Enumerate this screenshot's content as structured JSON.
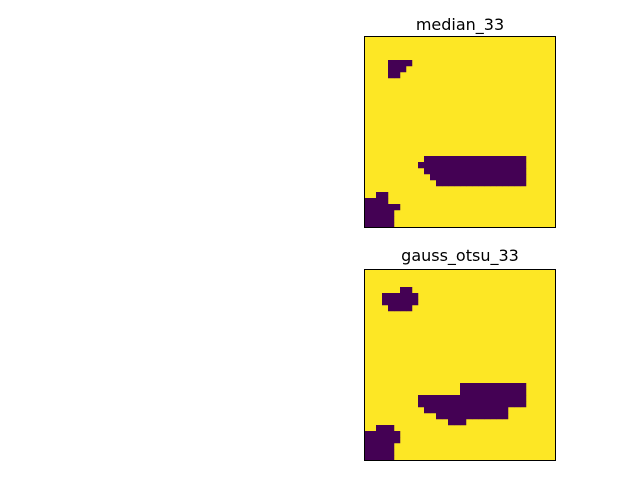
{
  "colors": {
    "background": "#fde725",
    "blob": "#440154",
    "frame": "#000000"
  },
  "panels": [
    {
      "title": "median_33",
      "grid_size": 32,
      "blobs": [
        [
          [
            4,
            4
          ],
          [
            5,
            4
          ],
          [
            6,
            4
          ],
          [
            7,
            4
          ],
          [
            4,
            5
          ],
          [
            5,
            5
          ],
          [
            6,
            5
          ],
          [
            4,
            6
          ],
          [
            5,
            6
          ]
        ],
        [
          [
            10,
            20
          ],
          [
            11,
            20
          ],
          [
            12,
            20
          ],
          [
            13,
            20
          ],
          [
            14,
            20
          ],
          [
            15,
            20
          ],
          [
            16,
            20
          ],
          [
            17,
            20
          ],
          [
            18,
            20
          ],
          [
            19,
            20
          ],
          [
            20,
            20
          ],
          [
            21,
            20
          ],
          [
            22,
            20
          ],
          [
            23,
            20
          ],
          [
            24,
            20
          ],
          [
            25,
            20
          ],
          [
            26,
            20
          ],
          [
            9,
            21
          ],
          [
            10,
            21
          ],
          [
            11,
            21
          ],
          [
            12,
            21
          ],
          [
            13,
            21
          ],
          [
            14,
            21
          ],
          [
            15,
            21
          ],
          [
            16,
            21
          ],
          [
            17,
            21
          ],
          [
            18,
            21
          ],
          [
            19,
            21
          ],
          [
            20,
            21
          ],
          [
            21,
            21
          ],
          [
            22,
            21
          ],
          [
            23,
            21
          ],
          [
            24,
            21
          ],
          [
            25,
            21
          ],
          [
            26,
            21
          ],
          [
            10,
            22
          ],
          [
            11,
            22
          ],
          [
            12,
            22
          ],
          [
            13,
            22
          ],
          [
            14,
            22
          ],
          [
            15,
            22
          ],
          [
            16,
            22
          ],
          [
            17,
            22
          ],
          [
            18,
            22
          ],
          [
            19,
            22
          ],
          [
            20,
            22
          ],
          [
            21,
            22
          ],
          [
            22,
            22
          ],
          [
            23,
            22
          ],
          [
            24,
            22
          ],
          [
            25,
            22
          ],
          [
            26,
            22
          ],
          [
            11,
            23
          ],
          [
            12,
            23
          ],
          [
            13,
            23
          ],
          [
            14,
            23
          ],
          [
            15,
            23
          ],
          [
            16,
            23
          ],
          [
            17,
            23
          ],
          [
            18,
            23
          ],
          [
            19,
            23
          ],
          [
            20,
            23
          ],
          [
            21,
            23
          ],
          [
            22,
            23
          ],
          [
            23,
            23
          ],
          [
            24,
            23
          ],
          [
            25,
            23
          ],
          [
            26,
            23
          ],
          [
            12,
            24
          ],
          [
            13,
            24
          ],
          [
            14,
            24
          ],
          [
            15,
            24
          ],
          [
            16,
            24
          ],
          [
            17,
            24
          ],
          [
            18,
            24
          ],
          [
            19,
            24
          ],
          [
            20,
            24
          ],
          [
            21,
            24
          ],
          [
            22,
            24
          ],
          [
            23,
            24
          ],
          [
            24,
            24
          ],
          [
            25,
            24
          ],
          [
            26,
            24
          ]
        ],
        [
          [
            2,
            26
          ],
          [
            3,
            26
          ],
          [
            0,
            27
          ],
          [
            1,
            27
          ],
          [
            2,
            27
          ],
          [
            3,
            27
          ],
          [
            0,
            28
          ],
          [
            1,
            28
          ],
          [
            2,
            28
          ],
          [
            3,
            28
          ],
          [
            4,
            28
          ],
          [
            5,
            28
          ],
          [
            0,
            29
          ],
          [
            1,
            29
          ],
          [
            2,
            29
          ],
          [
            3,
            29
          ],
          [
            4,
            29
          ],
          [
            0,
            30
          ],
          [
            1,
            30
          ],
          [
            2,
            30
          ],
          [
            3,
            30
          ],
          [
            4,
            30
          ],
          [
            0,
            31
          ],
          [
            1,
            31
          ],
          [
            2,
            31
          ],
          [
            3,
            31
          ],
          [
            4,
            31
          ]
        ]
      ]
    },
    {
      "title": "gauss_otsu_33",
      "grid_size": 32,
      "blobs": [
        [
          [
            6,
            3
          ],
          [
            7,
            3
          ],
          [
            3,
            4
          ],
          [
            4,
            4
          ],
          [
            5,
            4
          ],
          [
            6,
            4
          ],
          [
            7,
            4
          ],
          [
            8,
            4
          ],
          [
            3,
            5
          ],
          [
            4,
            5
          ],
          [
            5,
            5
          ],
          [
            6,
            5
          ],
          [
            7,
            5
          ],
          [
            8,
            5
          ],
          [
            4,
            6
          ],
          [
            5,
            6
          ],
          [
            6,
            6
          ],
          [
            7,
            6
          ]
        ],
        [
          [
            16,
            19
          ],
          [
            17,
            19
          ],
          [
            18,
            19
          ],
          [
            19,
            19
          ],
          [
            20,
            19
          ],
          [
            21,
            19
          ],
          [
            22,
            19
          ],
          [
            23,
            19
          ],
          [
            24,
            19
          ],
          [
            25,
            19
          ],
          [
            26,
            19
          ],
          [
            16,
            20
          ],
          [
            17,
            20
          ],
          [
            18,
            20
          ],
          [
            19,
            20
          ],
          [
            20,
            20
          ],
          [
            21,
            20
          ],
          [
            22,
            20
          ],
          [
            23,
            20
          ],
          [
            24,
            20
          ],
          [
            25,
            20
          ],
          [
            26,
            20
          ],
          [
            9,
            21
          ],
          [
            10,
            21
          ],
          [
            11,
            21
          ],
          [
            12,
            21
          ],
          [
            13,
            21
          ],
          [
            14,
            21
          ],
          [
            15,
            21
          ],
          [
            16,
            21
          ],
          [
            17,
            21
          ],
          [
            18,
            21
          ],
          [
            19,
            21
          ],
          [
            20,
            21
          ],
          [
            21,
            21
          ],
          [
            22,
            21
          ],
          [
            23,
            21
          ],
          [
            24,
            21
          ],
          [
            25,
            21
          ],
          [
            26,
            21
          ],
          [
            9,
            22
          ],
          [
            10,
            22
          ],
          [
            11,
            22
          ],
          [
            12,
            22
          ],
          [
            13,
            22
          ],
          [
            14,
            22
          ],
          [
            15,
            22
          ],
          [
            16,
            22
          ],
          [
            17,
            22
          ],
          [
            18,
            22
          ],
          [
            19,
            22
          ],
          [
            20,
            22
          ],
          [
            21,
            22
          ],
          [
            22,
            22
          ],
          [
            23,
            22
          ],
          [
            24,
            22
          ],
          [
            25,
            22
          ],
          [
            26,
            22
          ],
          [
            10,
            23
          ],
          [
            11,
            23
          ],
          [
            12,
            23
          ],
          [
            13,
            23
          ],
          [
            14,
            23
          ],
          [
            15,
            23
          ],
          [
            16,
            23
          ],
          [
            17,
            23
          ],
          [
            18,
            23
          ],
          [
            19,
            23
          ],
          [
            20,
            23
          ],
          [
            21,
            23
          ],
          [
            22,
            23
          ],
          [
            23,
            23
          ],
          [
            12,
            24
          ],
          [
            13,
            24
          ],
          [
            14,
            24
          ],
          [
            15,
            24
          ],
          [
            16,
            24
          ],
          [
            17,
            24
          ],
          [
            18,
            24
          ],
          [
            19,
            24
          ],
          [
            20,
            24
          ],
          [
            21,
            24
          ],
          [
            22,
            24
          ],
          [
            23,
            24
          ],
          [
            14,
            25
          ],
          [
            15,
            25
          ],
          [
            16,
            25
          ]
        ],
        [
          [
            2,
            26
          ],
          [
            3,
            26
          ],
          [
            4,
            26
          ],
          [
            0,
            27
          ],
          [
            1,
            27
          ],
          [
            2,
            27
          ],
          [
            3,
            27
          ],
          [
            4,
            27
          ],
          [
            5,
            27
          ],
          [
            0,
            28
          ],
          [
            1,
            28
          ],
          [
            2,
            28
          ],
          [
            3,
            28
          ],
          [
            4,
            28
          ],
          [
            5,
            28
          ],
          [
            0,
            29
          ],
          [
            1,
            29
          ],
          [
            2,
            29
          ],
          [
            3,
            29
          ],
          [
            4,
            29
          ],
          [
            0,
            30
          ],
          [
            1,
            30
          ],
          [
            2,
            30
          ],
          [
            3,
            30
          ],
          [
            4,
            30
          ],
          [
            0,
            31
          ],
          [
            1,
            31
          ],
          [
            2,
            31
          ],
          [
            3,
            31
          ],
          [
            4,
            31
          ]
        ]
      ]
    }
  ]
}
